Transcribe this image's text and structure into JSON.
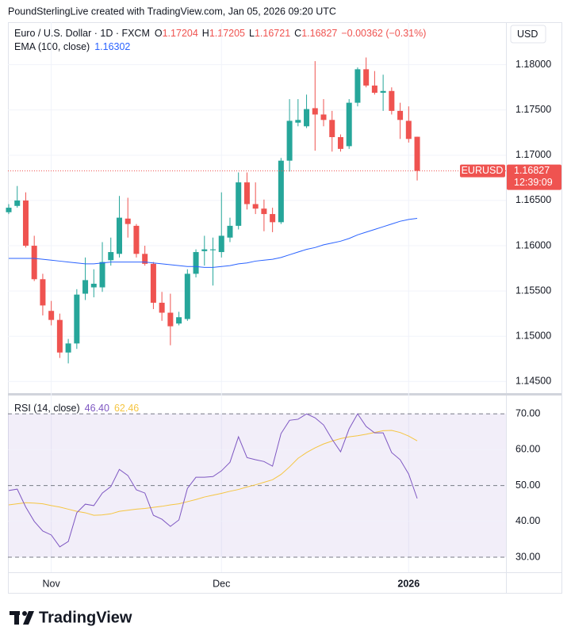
{
  "header": {
    "attribution": "PoundSterlingLive created with TradingView.com, Jan 05, 2026 09:20 UTC"
  },
  "footer": {
    "logo": "TradingView"
  },
  "chart_data": [
    {
      "type": "candlestick",
      "title": "Euro / U.S. Dollar · 1D · FXCM",
      "categories": [
        null,
        null,
        null,
        null,
        null,
        "Nov",
        null,
        null,
        null,
        null,
        null,
        null,
        null,
        null,
        null,
        null,
        null,
        null,
        null,
        null,
        null,
        null,
        null,
        null,
        null,
        "Dec",
        null,
        null,
        null,
        null,
        null,
        null,
        null,
        null,
        null,
        null,
        null,
        null,
        null,
        null,
        null,
        null,
        null,
        null,
        null,
        null,
        null,
        "2026",
        null
      ],
      "open": [
        1.1637,
        1.1644,
        1.165,
        1.16,
        1.1563,
        1.1528,
        1.1518,
        1.1482,
        1.1492,
        1.1547,
        1.1554,
        1.1554,
        1.1584,
        1.1591,
        1.163,
        1.1622,
        1.1591,
        1.158,
        1.1537,
        1.1526,
        1.1514,
        1.1519,
        1.1569,
        1.1594,
        1.1595,
        1.1593,
        1.1609,
        1.1622,
        1.167,
        1.1646,
        1.1641,
        1.1635,
        1.1626,
        1.1694,
        1.1736,
        1.1732,
        1.1752,
        1.1745,
        1.1739,
        1.172,
        1.171,
        1.1758,
        1.1795,
        1.1777,
        1.1769,
        1.1771,
        1.1749,
        1.1738,
        1.17204
      ],
      "high": [
        1.1646,
        1.1666,
        1.1659,
        1.1611,
        1.1569,
        1.1539,
        1.1525,
        1.1497,
        1.1552,
        1.1587,
        1.1574,
        1.1604,
        1.1609,
        1.1655,
        1.1653,
        1.1624,
        1.16,
        1.1582,
        1.1549,
        1.1547,
        1.1527,
        1.1574,
        1.1596,
        1.1611,
        1.1609,
        1.1659,
        1.1631,
        1.1681,
        1.1681,
        1.167,
        1.1651,
        1.1642,
        1.1697,
        1.1762,
        1.1762,
        1.1767,
        1.1804,
        1.1762,
        1.1749,
        1.1723,
        1.1762,
        1.1797,
        1.1808,
        1.1793,
        1.1789,
        1.1775,
        1.1758,
        1.1754,
        1.17205
      ],
      "low": [
        1.1635,
        1.1642,
        1.1598,
        1.1561,
        1.1523,
        1.1512,
        1.1476,
        1.147,
        1.1486,
        1.154,
        1.1543,
        1.1549,
        1.1578,
        1.1587,
        1.1609,
        1.1587,
        1.1578,
        1.153,
        1.1517,
        1.149,
        1.1512,
        1.1517,
        1.1565,
        1.1578,
        1.1556,
        1.1587,
        1.1604,
        1.1618,
        1.164,
        1.1635,
        1.1616,
        1.1615,
        1.1624,
        1.1682,
        1.1732,
        1.173,
        1.1705,
        1.1732,
        1.1704,
        1.1704,
        1.1707,
        1.1754,
        1.1775,
        1.1767,
        1.1749,
        1.1745,
        1.1718,
        1.1714,
        1.16721
      ],
      "close": [
        1.1642,
        1.165,
        1.16,
        1.1563,
        1.1534,
        1.1518,
        1.1482,
        1.1492,
        1.1546,
        1.1562,
        1.1558,
        1.1582,
        1.1593,
        1.1631,
        1.1624,
        1.1591,
        1.158,
        1.1537,
        1.1526,
        1.1511,
        1.1521,
        1.1569,
        1.1593,
        1.1596,
        1.1596,
        1.1611,
        1.1622,
        1.167,
        1.1646,
        1.1641,
        1.1635,
        1.1626,
        1.1694,
        1.1738,
        1.1739,
        1.1751,
        1.1745,
        1.1739,
        1.172,
        1.1707,
        1.1758,
        1.1795,
        1.1777,
        1.1769,
        1.1771,
        1.1749,
        1.1739,
        1.1718,
        1.16827
      ],
      "up_color": "#26a69a",
      "down_color": "#ef5350",
      "ohlc_labels": [
        "O",
        "H",
        "L",
        "C"
      ],
      "change": "−0.00362 (−0.31%)",
      "overlays": [
        {
          "name": "EMA (100, close)",
          "color": "#2962ff",
          "values": [
            1.1586,
            1.1586,
            1.1586,
            1.1586,
            1.1585,
            1.1584,
            1.1583,
            1.1582,
            1.1581,
            1.158,
            1.158,
            1.1581,
            1.1582,
            1.1582,
            1.1582,
            1.1582,
            1.1582,
            1.1581,
            1.158,
            1.1579,
            1.1578,
            1.1577,
            1.1577,
            1.1576,
            1.1576,
            1.1577,
            1.1578,
            1.158,
            1.1581,
            1.1583,
            1.1584,
            1.1585,
            1.1587,
            1.159,
            1.1593,
            1.1596,
            1.1598,
            1.1601,
            1.1603,
            1.1605,
            1.1608,
            1.1612,
            1.1615,
            1.1618,
            1.1621,
            1.1624,
            1.1627,
            1.1629,
            1.16302
          ]
        }
      ],
      "ylim": [
        1.1438,
        1.1847
      ],
      "yticks": [
        {
          "value": 1.145,
          "label": "1.14500"
        },
        {
          "value": 1.15,
          "label": "1.15000"
        },
        {
          "value": 1.155,
          "label": "1.15500"
        },
        {
          "value": 1.16,
          "label": "1.16000"
        },
        {
          "value": 1.165,
          "label": "1.16500"
        },
        {
          "value": 1.17,
          "label": "1.17000"
        },
        {
          "value": 1.175,
          "label": "1.17500"
        },
        {
          "value": 1.18,
          "label": "1.18000"
        }
      ],
      "grid": true,
      "currency": "USD",
      "symbol": "EURUSD",
      "countdown": "12:39:09"
    },
    {
      "type": "line",
      "title": "RSI (14, close)",
      "series": [
        {
          "color": "#7e57c2",
          "value_label": "46.40",
          "values": [
            48.6,
            49.0,
            44.0,
            40.0,
            37.3,
            36.2,
            32.9,
            34.4,
            42.4,
            44.8,
            44.4,
            47.9,
            49.7,
            54.5,
            52.8,
            48.8,
            47.9,
            41.7,
            40.6,
            38.6,
            40.4,
            49.2,
            52.3,
            52.3,
            52.5,
            54.1,
            56.5,
            63.6,
            57.8,
            57.2,
            56.7,
            55.4,
            64.5,
            68.2,
            68.5,
            70.0,
            68.9,
            66.9,
            62.9,
            59.4,
            65.8,
            70.0,
            66.5,
            64.7,
            64.7,
            59.2,
            57.2,
            53.2,
            46.4
          ]
        },
        {
          "color": "#f5c542",
          "values": [
            44.6,
            44.9,
            45.2,
            45.1,
            44.9,
            44.4,
            44.0,
            43.4,
            42.8,
            42.4,
            41.7,
            41.8,
            42.1,
            42.8,
            43.1,
            43.4,
            43.6,
            43.9,
            44.2,
            44.6,
            44.9,
            45.5,
            46.1,
            46.8,
            47.3,
            47.8,
            48.4,
            48.9,
            49.6,
            50.2,
            50.9,
            51.6,
            53.1,
            55.2,
            57.6,
            59.2,
            60.5,
            61.6,
            62.4,
            63.1,
            63.6,
            63.9,
            64.3,
            64.8,
            65.3,
            65.4,
            64.8,
            63.8,
            62.46
          ]
        }
      ],
      "ylim": [
        25.8,
        74.9
      ],
      "yticks": [
        {
          "value": 30,
          "label": "30.00"
        },
        {
          "value": 40,
          "label": "40.00"
        },
        {
          "value": 50,
          "label": "50.00"
        },
        {
          "value": 60,
          "label": "60.00"
        },
        {
          "value": 70,
          "label": "70.00"
        }
      ],
      "band": [
        30,
        70
      ],
      "dashed_levels": [
        30,
        50,
        70
      ],
      "band_color": "#7e57c2"
    }
  ]
}
